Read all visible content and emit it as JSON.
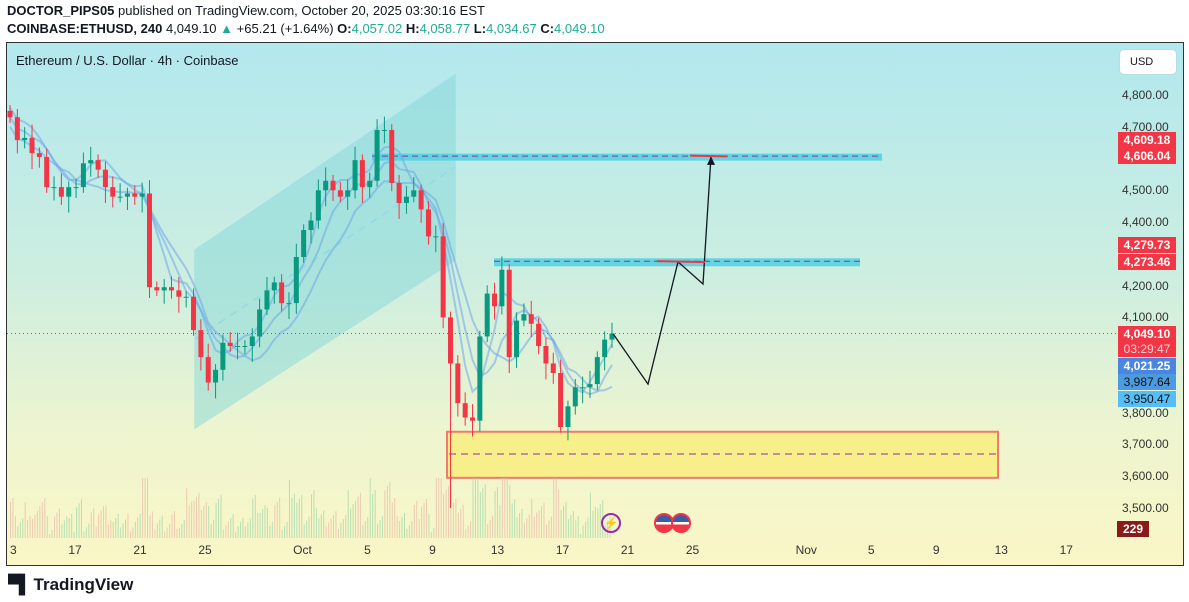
{
  "header": {
    "author": "DOCTOR_PIPS05",
    "published": "published on TradingView.com, October 20, 2025 03:30:16 EST",
    "symbol": "COINBASE:ETHUSD, 240",
    "last": "4,049.10",
    "change": "+65.21 (+1.64%)",
    "o_label": "O:",
    "o": "4,057.02",
    "h_label": "H:",
    "h": "4,058.77",
    "l_label": "L:",
    "l": "4,034.67",
    "c_label": "C:",
    "c": "4,049.10"
  },
  "chart_title": "Ethereum / U.S. Dollar · 4h · Coinbase",
  "currency_button": "USD",
  "price_labels": {
    "upper_zone_top": "4,609.18",
    "upper_zone_bottom": "4,606.04",
    "mid_zone_top": "4,279.73",
    "mid_zone_bottom": "4,273.46",
    "last_price": "4,049.10",
    "countdown": "03:29:47",
    "band_1": "4,021.25",
    "band_2": "3,987.64",
    "band_3": "3,950.47",
    "volume": "229"
  },
  "colors": {
    "up": "#089981",
    "down": "#f23645",
    "zone": "#4fd0e0",
    "demand": "#f7ef8a",
    "demand_border": "#f07a6e",
    "band": "#6fa8e8",
    "projection": "#131722"
  },
  "brand": "TradingView",
  "chart_data": {
    "type": "candlestick",
    "title": "Ethereum / U.S. Dollar · 4h · Coinbase",
    "ylim": [
      3450,
      4870
    ],
    "y_ticks": [
      "4,800.00",
      "4,700.00",
      "4,500.00",
      "4,400.00",
      "4,200.00",
      "4,100.00",
      "3,800.00",
      "3,700.00",
      "3,600.00",
      "3,500.00"
    ],
    "y_tick_values": [
      4800,
      4700,
      4500,
      4400,
      4200,
      4100,
      3800,
      3700,
      3600,
      3500
    ],
    "x_ticks": [
      {
        "label": "3",
        "day": 0
      },
      {
        "label": "17",
        "day": 4
      },
      {
        "label": "21",
        "day": 8
      },
      {
        "label": "25",
        "day": 12
      },
      {
        "label": "Oct",
        "day": 18
      },
      {
        "label": "5",
        "day": 22
      },
      {
        "label": "9",
        "day": 26
      },
      {
        "label": "13",
        "day": 30
      },
      {
        "label": "17",
        "day": 34
      },
      {
        "label": "21",
        "day": 38
      },
      {
        "label": "25",
        "day": 42
      },
      {
        "label": "Nov",
        "day": 49
      },
      {
        "label": "5",
        "day": 53
      },
      {
        "label": "9",
        "day": 57
      },
      {
        "label": "13",
        "day": 61
      },
      {
        "label": "17",
        "day": 65
      }
    ],
    "closes": [
      4730,
      4658,
      4665,
      4617,
      4605,
      4510,
      4510,
      4480,
      4510,
      4510,
      4585,
      4595,
      4565,
      4510,
      4480,
      4480,
      4490,
      4480,
      4490,
      4195,
      4185,
      4195,
      4185,
      4165,
      4165,
      4060,
      3975,
      3895,
      3935,
      4020,
      4010,
      4010,
      4010,
      4040,
      4125,
      4185,
      4210,
      4145,
      4145,
      4290,
      4375,
      4405,
      4500,
      4530,
      4500,
      4480,
      4500,
      4595,
      4510,
      4530,
      4690,
      4690,
      4523,
      4460,
      4480,
      4500,
      4440,
      4355,
      4355,
      4100,
      3955,
      3830,
      3785,
      3775,
      4040,
      4175,
      4135,
      4250,
      3975,
      4090,
      4110,
      4080,
      4010,
      3955,
      3925,
      3755,
      3820,
      3880,
      3880,
      3890,
      3975,
      4030,
      4049
    ],
    "last_close": 4049.1,
    "zones": [
      {
        "name": "resistance-upper",
        "top": 4609.18,
        "bottom": 4606.04
      },
      {
        "name": "resistance-mid",
        "top": 4279.73,
        "bottom": 4273.46
      },
      {
        "name": "demand",
        "top": 3740,
        "bottom": 3595,
        "mid": 3670
      }
    ],
    "projection_path": [
      4049,
      3890,
      4275,
      4205,
      4607
    ]
  }
}
